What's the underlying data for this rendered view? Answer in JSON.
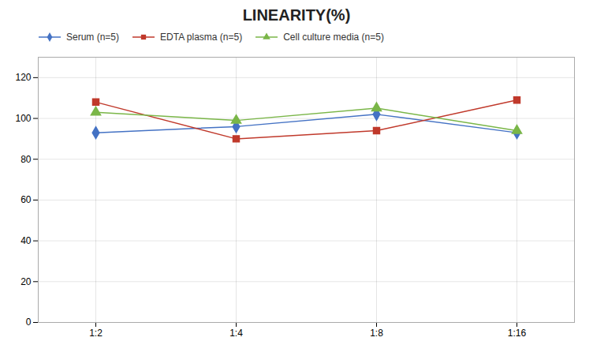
{
  "chart_data": {
    "type": "line",
    "title": "LINEARITY(%)",
    "categories": [
      "1:2",
      "1:4",
      "1:8",
      "1:16"
    ],
    "series": [
      {
        "name": "Serum (n=5)",
        "color": "#4472c4",
        "marker": "diamond",
        "values": [
          93,
          96,
          102,
          93
        ]
      },
      {
        "name": "EDTA plasma (n=5)",
        "color": "#c0392b",
        "marker": "square",
        "values": [
          108,
          90,
          94,
          109
        ]
      },
      {
        "name": "Cell culture media (n=5)",
        "color": "#7ab648",
        "marker": "triangle",
        "values": [
          103,
          99,
          105,
          94
        ]
      }
    ],
    "ylim": [
      0,
      130
    ],
    "yticks": [
      0,
      20,
      40,
      60,
      80,
      100,
      120
    ],
    "grid": true,
    "legend": "upper left"
  }
}
